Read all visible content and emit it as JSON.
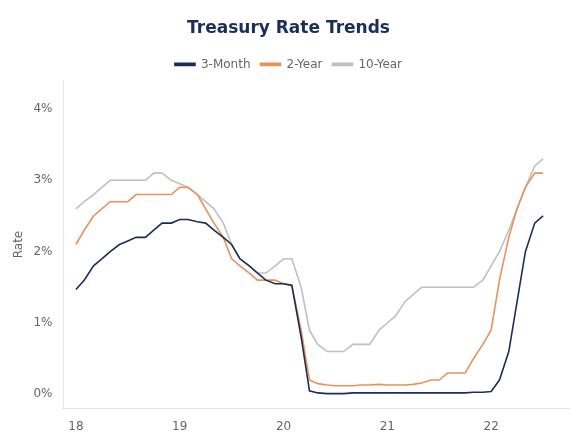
{
  "chart_data": {
    "type": "line",
    "title": "Treasury Rate Trends",
    "y_label": "Rate",
    "grid": false,
    "legend": "top",
    "xlim": [
      2017.88,
      2022.75
    ],
    "ylim": [
      -0.002,
      0.044
    ],
    "xticks": [
      {
        "value": 2018,
        "label": "18"
      },
      {
        "value": 2019,
        "label": "19"
      },
      {
        "value": 2020,
        "label": "20"
      },
      {
        "value": 2021,
        "label": "21"
      },
      {
        "value": 2022,
        "label": "22"
      }
    ],
    "yticks": [
      {
        "value": 0.0,
        "label": "0%"
      },
      {
        "value": 0.01,
        "label": "1%"
      },
      {
        "value": 0.02,
        "label": "2%"
      },
      {
        "value": 0.03,
        "label": "3%"
      },
      {
        "value": 0.04,
        "label": "4%"
      }
    ],
    "x": [
      2018.0,
      2018.08,
      2018.17,
      2018.25,
      2018.33,
      2018.42,
      2018.5,
      2018.58,
      2018.67,
      2018.75,
      2018.83,
      2018.92,
      2019.0,
      2019.08,
      2019.17,
      2019.25,
      2019.33,
      2019.42,
      2019.5,
      2019.58,
      2019.67,
      2019.75,
      2019.83,
      2019.92,
      2020.0,
      2020.08,
      2020.17,
      2020.25,
      2020.33,
      2020.42,
      2020.5,
      2020.58,
      2020.67,
      2020.75,
      2020.83,
      2020.92,
      2021.0,
      2021.08,
      2021.17,
      2021.25,
      2021.33,
      2021.42,
      2021.5,
      2021.58,
      2021.67,
      2021.75,
      2021.83,
      2021.92,
      2022.0,
      2022.08,
      2022.17,
      2022.25,
      2022.33,
      2022.42,
      2022.5
    ],
    "series": [
      {
        "name": "3-Month",
        "color": "#1a2e5a",
        "values": [
          0.0147,
          0.016,
          0.018,
          0.019,
          0.02,
          0.021,
          0.0215,
          0.022,
          0.022,
          0.023,
          0.024,
          0.024,
          0.0245,
          0.0245,
          0.0242,
          0.024,
          0.023,
          0.022,
          0.021,
          0.019,
          0.018,
          0.017,
          0.016,
          0.0155,
          0.0155,
          0.0153,
          0.008,
          0.0005,
          0.0002,
          0.0001,
          0.0001,
          0.0001,
          0.0002,
          0.0002,
          0.0002,
          0.0002,
          0.0002,
          0.0002,
          0.0002,
          0.0002,
          0.0002,
          0.0002,
          0.0002,
          0.0002,
          0.0002,
          0.0002,
          0.0003,
          0.0003,
          0.0004,
          0.002,
          0.006,
          0.013,
          0.02,
          0.024,
          0.025
        ]
      },
      {
        "name": "2-Year",
        "color": "#e8925a",
        "values": [
          0.021,
          0.023,
          0.025,
          0.026,
          0.027,
          0.027,
          0.027,
          0.028,
          0.028,
          0.028,
          0.028,
          0.028,
          0.029,
          0.029,
          0.028,
          0.026,
          0.024,
          0.022,
          0.019,
          0.018,
          0.017,
          0.016,
          0.016,
          0.016,
          0.0155,
          0.0152,
          0.009,
          0.002,
          0.0015,
          0.0013,
          0.0012,
          0.0012,
          0.0012,
          0.0013,
          0.0013,
          0.0014,
          0.0013,
          0.0013,
          0.0013,
          0.0014,
          0.0016,
          0.002,
          0.002,
          0.003,
          0.003,
          0.003,
          0.005,
          0.007,
          0.009,
          0.016,
          0.022,
          0.026,
          0.029,
          0.031,
          0.031
        ]
      },
      {
        "name": "10-Year",
        "color": "#c0c0c0",
        "values": [
          0.026,
          0.027,
          0.028,
          0.029,
          0.03,
          0.03,
          0.03,
          0.03,
          0.03,
          0.031,
          0.031,
          0.03,
          0.0295,
          0.029,
          0.028,
          0.027,
          0.026,
          0.024,
          0.021,
          0.019,
          0.018,
          0.017,
          0.017,
          0.018,
          0.019,
          0.019,
          0.015,
          0.009,
          0.007,
          0.006,
          0.006,
          0.006,
          0.007,
          0.007,
          0.007,
          0.009,
          0.01,
          0.011,
          0.013,
          0.014,
          0.015,
          0.015,
          0.015,
          0.015,
          0.015,
          0.015,
          0.015,
          0.016,
          0.018,
          0.02,
          0.023,
          0.026,
          0.029,
          0.032,
          0.033
        ]
      }
    ]
  }
}
